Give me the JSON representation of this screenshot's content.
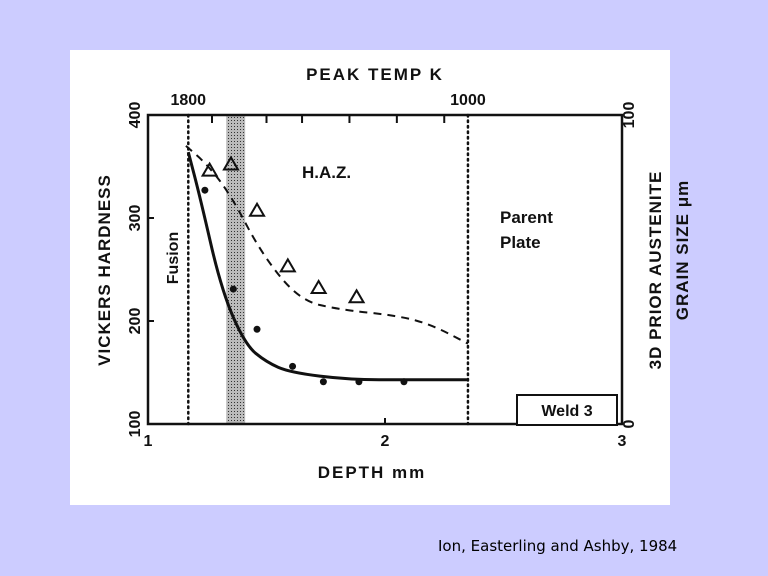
{
  "chart_data": {
    "type": "scatter",
    "title": "",
    "xlabel": "DEPTH mm",
    "xlim": [
      1,
      3
    ],
    "xticks": [
      "1",
      "2",
      "3"
    ],
    "top_axis": {
      "label": "PEAK TEMP K",
      "ticks": [
        {
          "label": "1800",
          "depth": 1.17
        },
        {
          "label": "1000",
          "depth": 2.35
        }
      ]
    },
    "ylabel": "VICKERS HARDNESS",
    "ylim": [
      100,
      400
    ],
    "yticks": [
      "100",
      "200",
      "300",
      "400"
    ],
    "y2label_line1": "3D PRIOR AUSTENITE",
    "y2label_line2": "GRAIN SIZE μm",
    "y2lim": [
      0,
      100
    ],
    "y2ticks": [
      "0",
      "100"
    ],
    "series": [
      {
        "name": "Hardness (measured)",
        "marker": "dot",
        "axis": "left",
        "x": [
          1.24,
          1.36,
          1.46,
          1.61,
          1.74,
          1.89,
          2.08
        ],
        "y": [
          327,
          231,
          192,
          156,
          141,
          141,
          141
        ]
      },
      {
        "name": "Hardness (fit)",
        "style": "solid",
        "axis": "left",
        "x": [
          1.17,
          1.22,
          1.31,
          1.41,
          1.5,
          1.6,
          1.85,
          2.1,
          2.35
        ],
        "y": [
          364,
          320,
          230,
          177,
          160,
          150,
          143,
          143,
          143
        ]
      },
      {
        "name": "Grain size (measured)",
        "marker": "triangle",
        "axis": "right",
        "x": [
          1.26,
          1.35,
          1.46,
          1.59,
          1.72,
          1.88
        ],
        "y": [
          82,
          84,
          69,
          51,
          44,
          41
        ]
      },
      {
        "name": "Grain size (predicted)",
        "style": "dashed",
        "axis": "right",
        "x": [
          1.16,
          1.25,
          1.35,
          1.48,
          1.64,
          1.81,
          2.06,
          2.2,
          2.35
        ],
        "y": [
          90,
          84,
          74,
          55,
          40,
          37,
          35,
          32,
          26
        ]
      }
    ],
    "vlines": [
      1.17,
      2.35
    ],
    "shaded_band": [
      1.33,
      1.41
    ],
    "annotations": {
      "fusion": "Fusion",
      "haz": "H.A.Z.",
      "parent1": "Parent",
      "parent2": "Plate",
      "weld": "Weld 3"
    },
    "grid": false
  },
  "citation": "Ion, Easterling and Ashby, 1984",
  "colors": {
    "background": "#ccccff",
    "panel": "#ffffff",
    "ink": "#111111"
  }
}
